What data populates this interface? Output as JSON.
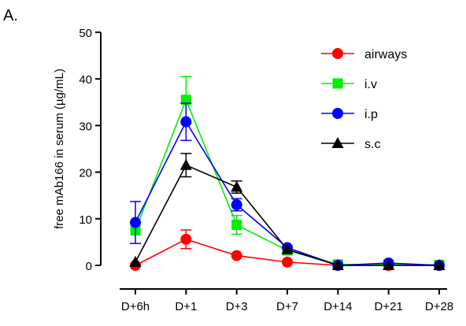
{
  "chart_data": {
    "type": "line",
    "panel_label": "A.",
    "title": "",
    "xlabel": "",
    "ylabel": "free mAb166 in serum (µg/mL)",
    "ylim": [
      0,
      50
    ],
    "yticks": [
      0,
      10,
      20,
      30,
      40,
      50
    ],
    "categories": [
      "D+6h",
      "D+1",
      "D+3",
      "D+7",
      "D+14",
      "D+21",
      "D+28"
    ],
    "legend_position": "top-right",
    "series": [
      {
        "name": "airways",
        "color": "#ff0000",
        "marker": "circle",
        "values": [
          0,
          5.6,
          2.1,
          0.7,
          0,
          0,
          0
        ],
        "errors": [
          0,
          2.0,
          0,
          0,
          0,
          0,
          0
        ]
      },
      {
        "name": "i.v",
        "color": "#00ee00",
        "marker": "square",
        "values": [
          7.5,
          35.5,
          8.7,
          3.2,
          0.2,
          0.2,
          0.1
        ],
        "errors": [
          0,
          5.0,
          2.0,
          0,
          0,
          0,
          0
        ]
      },
      {
        "name": "i.p",
        "color": "#0000ff",
        "marker": "circle",
        "values": [
          9.2,
          30.8,
          13.0,
          3.8,
          0,
          0.5,
          0
        ],
        "errors": [
          4.5,
          4.0,
          1.3,
          0,
          0,
          0,
          0
        ]
      },
      {
        "name": "s.c",
        "color": "#000000",
        "marker": "triangle",
        "values": [
          0.7,
          21.5,
          16.8,
          3.4,
          0,
          0,
          0
        ],
        "errors": [
          0,
          2.5,
          1.3,
          0,
          0,
          0,
          0
        ]
      }
    ]
  }
}
